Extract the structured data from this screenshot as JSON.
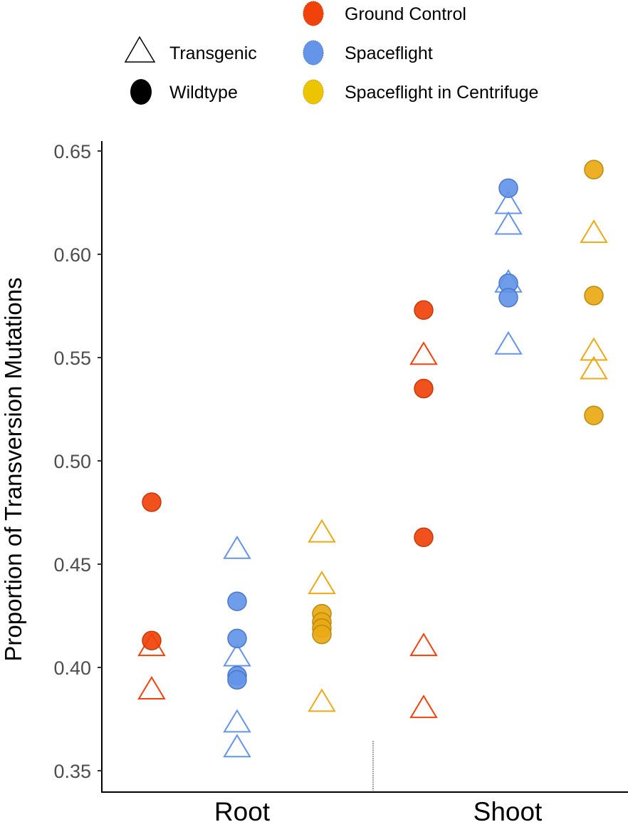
{
  "chart_data": {
    "type": "scatter",
    "title": "",
    "xlabel": "",
    "ylabel": "Proportion of Transversion Mutations",
    "ylim": [
      0.34,
      0.655
    ],
    "yticks": [
      0.35,
      0.4,
      0.45,
      0.5,
      0.55,
      0.6,
      0.65
    ],
    "ytick_labels": [
      "0.35",
      "0.40",
      "0.45",
      "0.50",
      "0.55",
      "0.60",
      "0.65"
    ],
    "categories": [
      "Root",
      "Shoot"
    ],
    "grid": false,
    "legend_position": "top",
    "shape_legend": [
      {
        "label": "Transgenic",
        "shape": "triangle-open"
      },
      {
        "label": "Wildtype",
        "shape": "circle-filled"
      }
    ],
    "color_legend": [
      {
        "label": "Ground Control",
        "color": "#f0420a"
      },
      {
        "label": "Spaceflight",
        "color": "#6495e8"
      },
      {
        "label": "Spaceflight in Centrifuge",
        "color": "#ecc400"
      }
    ],
    "series": [
      {
        "name": "Ground Control",
        "tissue": "Root",
        "color": "#f0420a",
        "transgenic": [
          0.411,
          0.39
        ],
        "wildtype": [
          0.48,
          0.413
        ]
      },
      {
        "name": "Spaceflight",
        "tissue": "Root",
        "color": "#6495e8",
        "transgenic": [
          0.458,
          0.406,
          0.374,
          0.362
        ],
        "wildtype": [
          0.432,
          0.414,
          0.396,
          0.394
        ]
      },
      {
        "name": "Spaceflight in Centrifuge",
        "tissue": "Root",
        "color": "#eaa915",
        "transgenic": [
          0.466,
          0.441,
          0.384
        ],
        "wildtype": [
          0.426,
          0.422,
          0.419,
          0.416
        ]
      },
      {
        "name": "Ground Control",
        "tissue": "Shoot",
        "color": "#f0420a",
        "transgenic": [
          0.552,
          0.411,
          0.381
        ],
        "wildtype": [
          0.573,
          0.535,
          0.463
        ]
      },
      {
        "name": "Spaceflight",
        "tissue": "Shoot",
        "color": "#6495e8",
        "transgenic": [
          0.625,
          0.615,
          0.587,
          0.557
        ],
        "wildtype": [
          0.632,
          0.586,
          0.579
        ]
      },
      {
        "name": "Spaceflight in Centrifuge",
        "tissue": "Shoot",
        "color": "#eaa915",
        "transgenic": [
          0.611,
          0.554,
          0.545
        ],
        "wildtype": [
          0.641,
          0.58,
          0.522
        ]
      }
    ]
  }
}
